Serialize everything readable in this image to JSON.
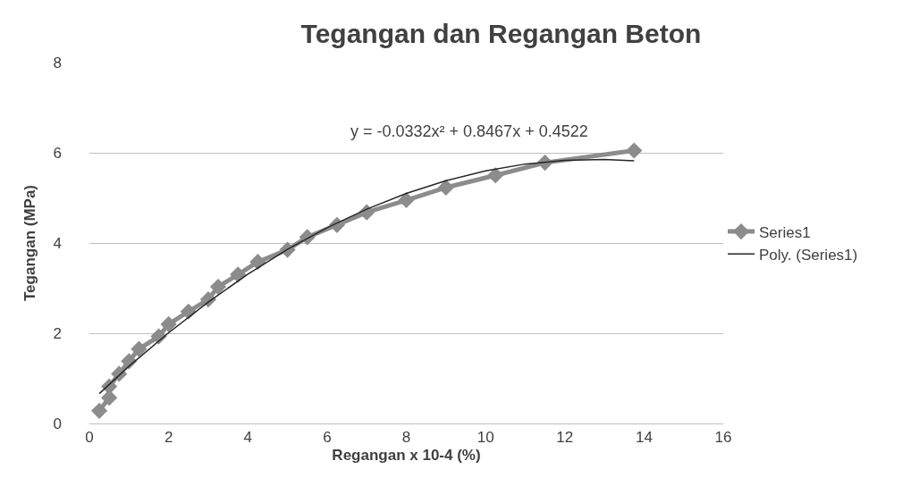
{
  "chart_data": {
    "type": "line",
    "title": "Tegangan dan Regangan Beton",
    "xlabel": "Regangan x 10-4 (%)",
    "ylabel": "Tegangan (MPa)",
    "annotations": [
      "y = -0.0332x² + 0.8467x + 0.4522"
    ],
    "series": [
      {
        "name": "Series1",
        "color": "#8c8c8c",
        "marker": "diamond",
        "x": [
          0.25,
          0.5,
          0.5,
          0.75,
          1.0,
          1.25,
          1.75,
          2.0,
          2.5,
          3.0,
          3.25,
          3.75,
          4.25,
          5.0,
          5.5,
          6.25,
          7.0,
          8.0,
          9.0,
          10.25,
          11.5,
          13.75
        ],
        "values": [
          0.28,
          0.57,
          0.82,
          1.1,
          1.38,
          1.65,
          1.93,
          2.2,
          2.48,
          2.75,
          3.03,
          3.3,
          3.58,
          3.85,
          4.13,
          4.4,
          4.68,
          4.95,
          5.23,
          5.5,
          5.78,
          6.05
        ]
      },
      {
        "name": "Poly. (Series1)",
        "color": "#262626",
        "marker": "none",
        "x": [
          0.25,
          1,
          2,
          3,
          4,
          5,
          6,
          7,
          8,
          9,
          10,
          11,
          12,
          13,
          13.75
        ],
        "values": [
          0.66,
          1.27,
          2.01,
          2.69,
          3.31,
          3.86,
          4.34,
          4.75,
          5.1,
          5.38,
          5.6,
          5.75,
          5.83,
          5.85,
          5.82
        ]
      }
    ],
    "xlim": [
      0,
      16
    ],
    "xticks": [
      0,
      2,
      4,
      6,
      8,
      10,
      12,
      14,
      16
    ],
    "ylim": [
      0,
      8
    ],
    "yticks": [
      0,
      2,
      4,
      6,
      8
    ],
    "grid": "y",
    "legend": "right",
    "line_style": "solid"
  }
}
